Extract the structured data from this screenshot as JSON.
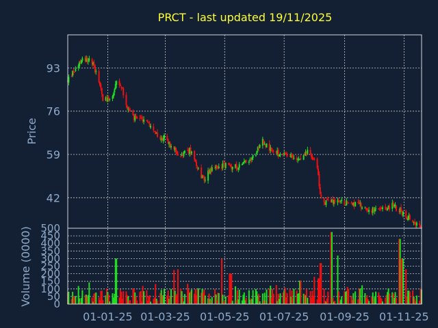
{
  "chart_data": {
    "type": "candlestick",
    "title": "PRCT - last updated 19/11/2025",
    "ylabel": "Price",
    "volume_ylabel": "Volume (0000)",
    "price_ylim": [
      30,
      106
    ],
    "price_ticks": [
      "93",
      "76",
      "59",
      "42"
    ],
    "price_tick_values": [
      93,
      76,
      59,
      42
    ],
    "volume_ylim": [
      0,
      500
    ],
    "volume_ticks": [
      "500",
      "450",
      "400",
      "350",
      "300",
      "250",
      "200",
      "150",
      "100",
      "50",
      "0"
    ],
    "volume_tick_values": [
      500,
      450,
      400,
      350,
      300,
      250,
      200,
      150,
      100,
      50,
      0
    ],
    "x_range": [
      "2024-11-21",
      "2025-11-19"
    ],
    "x_ticks": [
      "01-01-25",
      "01-03-25",
      "01-05-25",
      "01-07-25",
      "01-09-25",
      "01-11-25"
    ],
    "x_tick_dates": [
      "2025-01-01",
      "2025-03-01",
      "2025-05-01",
      "2025-07-01",
      "2025-09-01",
      "2025-11-01"
    ],
    "grid": true,
    "colors": {
      "up": "#22dd22",
      "down": "#ee1111",
      "background": "#132033",
      "title": "#ffff33",
      "axis_text": "#8fa9c8"
    },
    "price_path": [
      [
        "2024-11-21",
        88
      ],
      [
        "2024-12-01",
        94
      ],
      [
        "2024-12-08",
        97
      ],
      [
        "2024-12-15",
        96
      ],
      [
        "2024-12-22",
        90
      ],
      [
        "2024-12-27",
        81
      ],
      [
        "2025-01-01",
        81
      ],
      [
        "2025-01-06",
        82
      ],
      [
        "2025-01-11",
        88
      ],
      [
        "2025-01-16",
        84
      ],
      [
        "2025-01-21",
        78
      ],
      [
        "2025-01-28",
        73
      ],
      [
        "2025-02-05",
        73
      ],
      [
        "2025-02-12",
        71
      ],
      [
        "2025-02-17",
        68
      ],
      [
        "2025-02-24",
        65
      ],
      [
        "2025-03-01",
        66
      ],
      [
        "2025-03-08",
        61
      ],
      [
        "2025-03-18",
        59
      ],
      [
        "2025-03-28",
        61
      ],
      [
        "2025-04-05",
        52
      ],
      [
        "2025-04-10",
        49
      ],
      [
        "2025-04-15",
        53
      ],
      [
        "2025-04-25",
        54
      ],
      [
        "2025-05-01",
        55
      ],
      [
        "2025-05-10",
        54
      ],
      [
        "2025-05-18",
        55
      ],
      [
        "2025-05-26",
        57
      ],
      [
        "2025-06-01",
        59
      ],
      [
        "2025-06-08",
        65
      ],
      [
        "2025-06-16",
        61
      ],
      [
        "2025-06-26",
        59
      ],
      [
        "2025-07-06",
        58
      ],
      [
        "2025-07-16",
        58
      ],
      [
        "2025-07-26",
        60
      ],
      [
        "2025-07-31",
        58
      ],
      [
        "2025-08-04",
        53
      ],
      [
        "2025-08-07",
        44
      ],
      [
        "2025-08-10",
        40
      ],
      [
        "2025-08-20",
        41
      ],
      [
        "2025-09-01",
        40
      ],
      [
        "2025-09-10",
        40
      ],
      [
        "2025-09-20",
        38
      ],
      [
        "2025-10-01",
        37
      ],
      [
        "2025-10-10",
        37
      ],
      [
        "2025-10-20",
        39
      ],
      [
        "2025-10-28",
        37
      ],
      [
        "2025-11-05",
        34
      ],
      [
        "2025-11-10",
        33
      ],
      [
        "2025-11-19",
        31
      ]
    ],
    "volume_spikes": [
      [
        "2025-01-10",
        300
      ],
      [
        "2025-03-09",
        225
      ],
      [
        "2025-03-15",
        230
      ],
      [
        "2025-04-27",
        300
      ],
      [
        "2025-05-07",
        200
      ],
      [
        "2025-07-18",
        155
      ],
      [
        "2025-08-02",
        180
      ],
      [
        "2025-08-06",
        170
      ],
      [
        "2025-08-08",
        270
      ],
      [
        "2025-08-18",
        475
      ],
      [
        "2025-08-24",
        320
      ],
      [
        "2025-10-27",
        430
      ],
      [
        "2025-10-30",
        300
      ],
      [
        "2025-11-02",
        230
      ]
    ]
  }
}
